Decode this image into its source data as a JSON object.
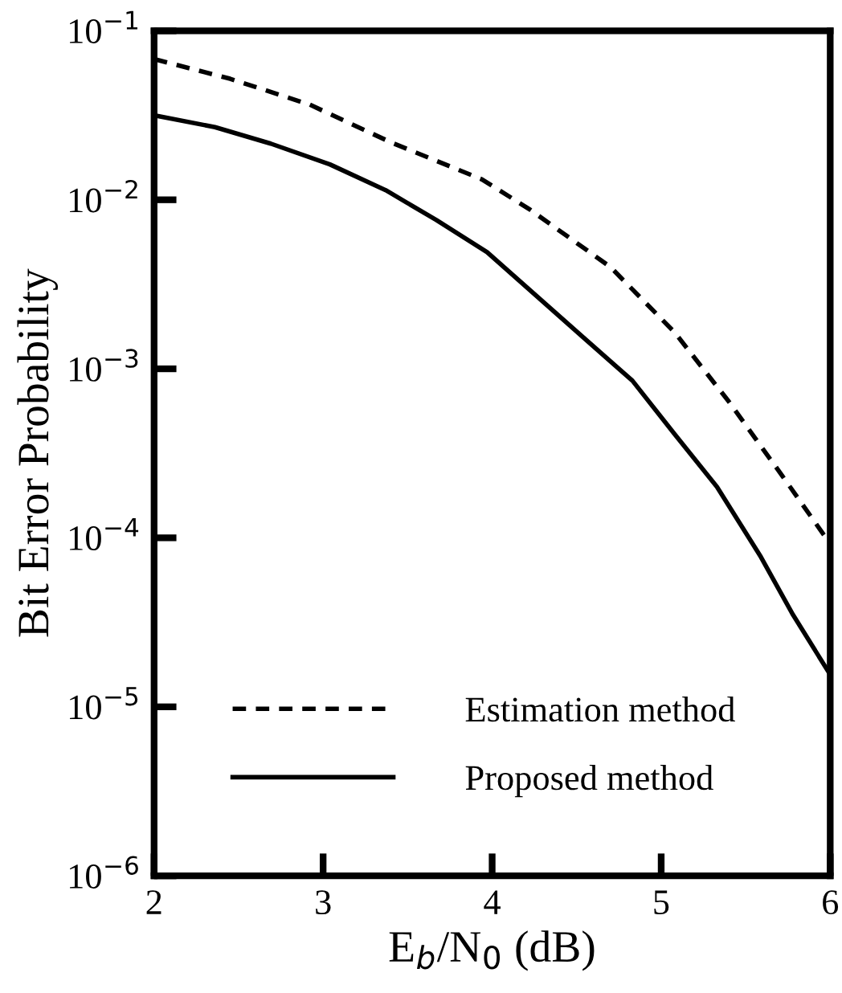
{
  "chart_data": {
    "type": "line",
    "xlabel": "E$_{b}$/N$_{0}$ (dB)",
    "ylabel": "Bit Error Probability",
    "log": "y",
    "xlim": [
      2,
      6
    ],
    "xticks": [
      2,
      3,
      4,
      5,
      6
    ],
    "ylim": [
      1e-06,
      0.1
    ],
    "yticks": [
      {
        "value": 1e-06,
        "label": "10$^{−6}$"
      },
      {
        "value": 1e-05,
        "label": "10$^{−5}$"
      },
      {
        "value": 0.0001,
        "label": "10$^{−4}$"
      },
      {
        "value": 0.001,
        "label": "10$^{−3}$"
      },
      {
        "value": 0.01,
        "label": "10$^{−2}$"
      },
      {
        "value": 0.1,
        "label": "10$^{−1}$"
      }
    ],
    "grid": false,
    "legend": "bottom left",
    "marker": "none",
    "series": [
      {
        "name": "Estimation method",
        "color": "#000000",
        "line_style": "dotted",
        "x": [
          2,
          2.45,
          2.92,
          3.4,
          3.94,
          4.22,
          4.7,
          5.08,
          5.4,
          5.72,
          6
        ],
        "values": [
          0.068,
          0.052,
          0.0366,
          0.0219,
          0.0132,
          0.0088,
          0.004,
          0.00164,
          0.00064,
          0.00023,
          9.2e-05
        ]
      },
      {
        "name": "Proposed method",
        "color": "#000000",
        "line_style": "solid",
        "x": [
          2,
          2.36,
          2.69,
          3.04,
          3.37,
          3.67,
          3.97,
          4.54,
          4.83,
          5.08,
          5.33,
          5.59,
          5.78,
          6
        ],
        "values": [
          0.0316,
          0.0269,
          0.0215,
          0.0162,
          0.0114,
          0.00759,
          0.0049,
          0.00153,
          0.00085,
          0.00041,
          0.0002,
          7.7e-05,
          3.5e-05,
          1.55e-05
        ]
      }
    ]
  }
}
